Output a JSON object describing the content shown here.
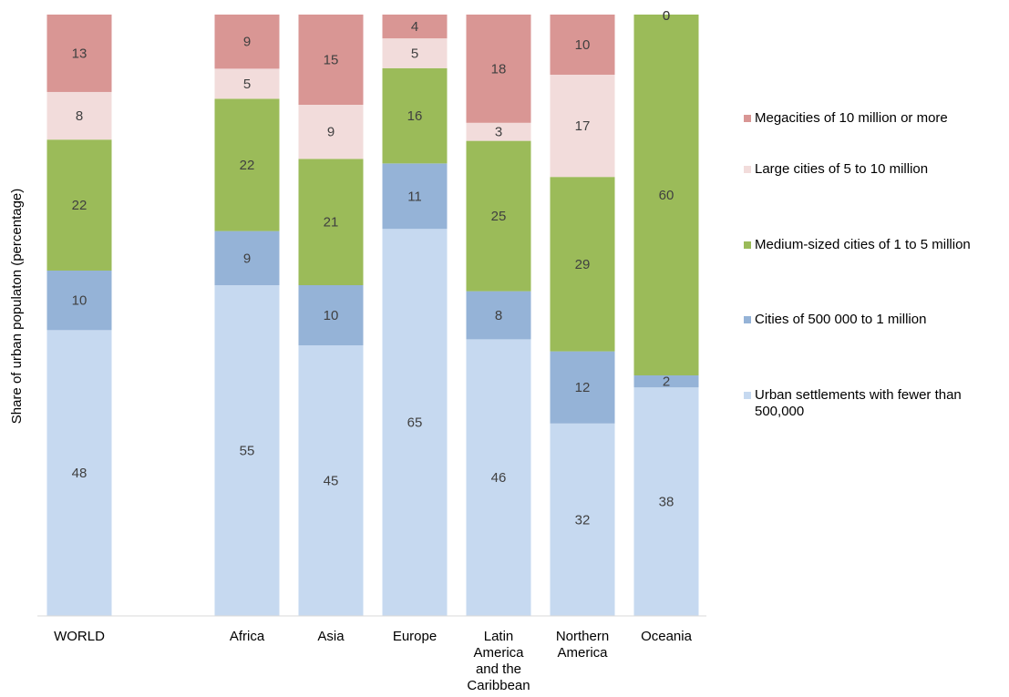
{
  "chart_data": {
    "type": "bar",
    "stacked": true,
    "ylabel": "Share of urban populaton (percentage)",
    "ylim": [
      0,
      100
    ],
    "categories": [
      "WORLD",
      "Africa",
      "Asia",
      "Europe",
      "Latin America and the Caribbean",
      "Northern America",
      "Oceania"
    ],
    "category_lines": [
      [
        "WORLD"
      ],
      [
        "Africa"
      ],
      [
        "Asia"
      ],
      [
        "Europe"
      ],
      [
        "Latin",
        "America",
        "and the",
        "Caribbean"
      ],
      [
        "Northern",
        "America"
      ],
      [
        "Oceania"
      ]
    ],
    "series": [
      {
        "name": "Urban settlements with fewer than 500,000",
        "color": "#c6d9f0",
        "values": [
          48,
          55,
          45,
          65,
          46,
          32,
          38
        ]
      },
      {
        "name": "Cities of 500 000 to 1 million",
        "color": "#95b3d7",
        "values": [
          10,
          9,
          10,
          11,
          8,
          12,
          2
        ]
      },
      {
        "name": "Medium-sized cities of 1 to 5 million",
        "color": "#9bbb59",
        "values": [
          22,
          22,
          21,
          16,
          25,
          29,
          60
        ]
      },
      {
        "name": "Large cities of 5 to 10 million",
        "color": "#f2dcdb",
        "values": [
          8,
          5,
          9,
          5,
          3,
          17,
          0
        ]
      },
      {
        "name": "Megacities of 10 million or more",
        "color": "#d99694",
        "values": [
          13,
          9,
          15,
          4,
          18,
          10,
          0
        ]
      }
    ],
    "legend_order": [
      4,
      3,
      2,
      1,
      0
    ],
    "legend_lines": [
      [
        "Megacities of 10 million or more"
      ],
      [
        "Large cities of 5 to 10 million"
      ],
      [
        "Medium-sized cities of 1 to 5 million"
      ],
      [
        "Cities of 500 000 to 1 million"
      ],
      [
        "Urban settlements with fewer than",
        "500,000"
      ]
    ],
    "legend_position": "right",
    "grid": false
  }
}
